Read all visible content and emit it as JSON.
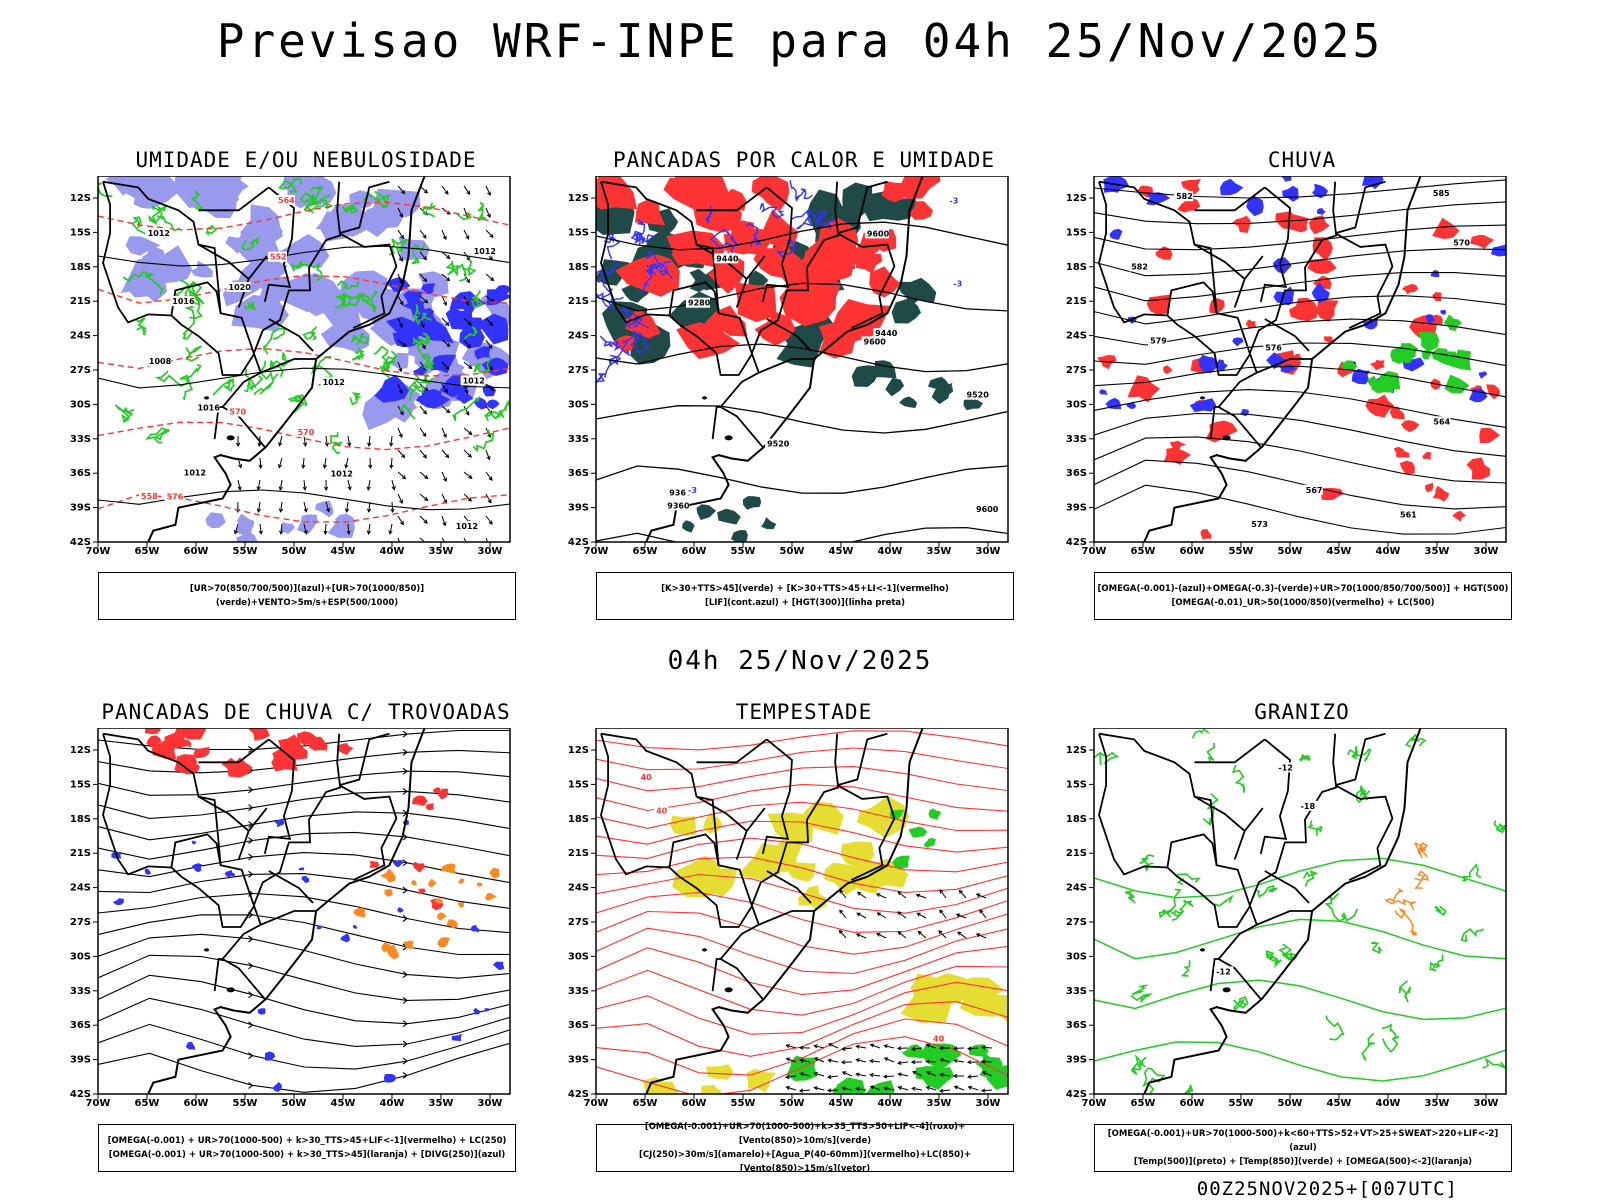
{
  "header": {
    "title": "Previsao WRF-INPE  para 04h 25/Nov/2025",
    "mid_title": "04h 25/Nov/2025",
    "footer": "00Z25NOV2025+[007UTC]"
  },
  "axes": {
    "lat_labels": [
      "12S",
      "15S",
      "18S",
      "21S",
      "24S",
      "27S",
      "30S",
      "33S",
      "36S",
      "39S",
      "42S"
    ],
    "lon_labels": [
      "70W",
      "65W",
      "60W",
      "55W",
      "50W",
      "45W",
      "40W",
      "35W",
      "30W"
    ]
  },
  "panels": [
    {
      "title": "UMIDADE E/OU NEBULOSIDADE",
      "legend": [
        "[UR>70(850/700/500)](azul)+[UR>70(1000/850)](verde)+VENTO>5m/s+ESP(500/1000)"
      ],
      "labels": [
        "1012",
        "1012",
        "1012",
        "1012",
        "1012",
        "1012",
        "1016",
        "1020",
        "1008",
        "1012",
        "1016",
        "570",
        "576",
        "564",
        "558",
        "552",
        "570"
      ]
    },
    {
      "title": "PANCADAS POR CALOR E UMIDADE",
      "legend": [
        "[K>30+TTS>45](verde) + [K>30+TTS>45+LI<-1](vermelho)",
        "[LIF](cont.azul) + [HGT(300)](linha preta)"
      ],
      "labels": [
        "9600",
        "9600",
        "9520",
        "9520",
        "9600",
        "9440",
        "9360",
        "9440",
        "9360",
        "9280",
        "-3",
        "-3",
        "-3"
      ]
    },
    {
      "title": "CHUVA",
      "legend": [
        "[OMEGA(-0.001)-(azul)+OMEGA(-0.3)-(verde)+UR>70(1000/850/700/500)] + HGT(500)",
        "[OMEGA(-0.01)_UR>50(1000/850)(vermelho) + LC(500)"
      ],
      "labels": [
        "582",
        "582",
        "579",
        "576",
        "570",
        "567",
        "564",
        "561",
        "573",
        "585"
      ]
    },
    {
      "title": "PANCADAS DE CHUVA C/ TROVOADAS",
      "legend": [
        "[OMEGA(-0.001) + UR>70(1000-500) + k>30_TTS>45+LIF<-1](vermelho) + LC(250)",
        "[OMEGA(-0.001) + UR>70(1000-500) + k>30_TTS>45](laranja) + [DIVG(250)](azul)"
      ],
      "labels": []
    },
    {
      "title": "TEMPESTADE",
      "legend": [
        "[OMEGA(-0.001)+UR>70(1000-500)+k>35_TTS>50+LIF<-4](roxo)+[Vento(850)>10m/s](verde)",
        "[CJ(250)>30m/s](amarelo)+[Agua_P(40-60mm)](vermelho)+LC(850)+[Vento(850)>15m/s](vetor)"
      ],
      "labels": [
        "40",
        "40",
        "40"
      ]
    },
    {
      "title": "GRANIZO",
      "legend": [
        "[OMEGA(-0.001)+UR>70(1000-500)+k<60+TTS>52+VT>25+SWEAT>220+LIF<-2](azul)",
        "[Temp(500)](preto) + [Temp(850)](verde) + [OMEGA(500)<-2](laranja)"
      ],
      "labels": [
        "-12",
        "-12",
        "-18"
      ]
    }
  ],
  "colors": {
    "blue": "#3333ff",
    "lightblue": "#9999ee",
    "green": "#22cc22",
    "red": "#ff3333",
    "darkteal": "#1f4a48",
    "yellow": "#e6dd33",
    "orange": "#ff8822"
  }
}
